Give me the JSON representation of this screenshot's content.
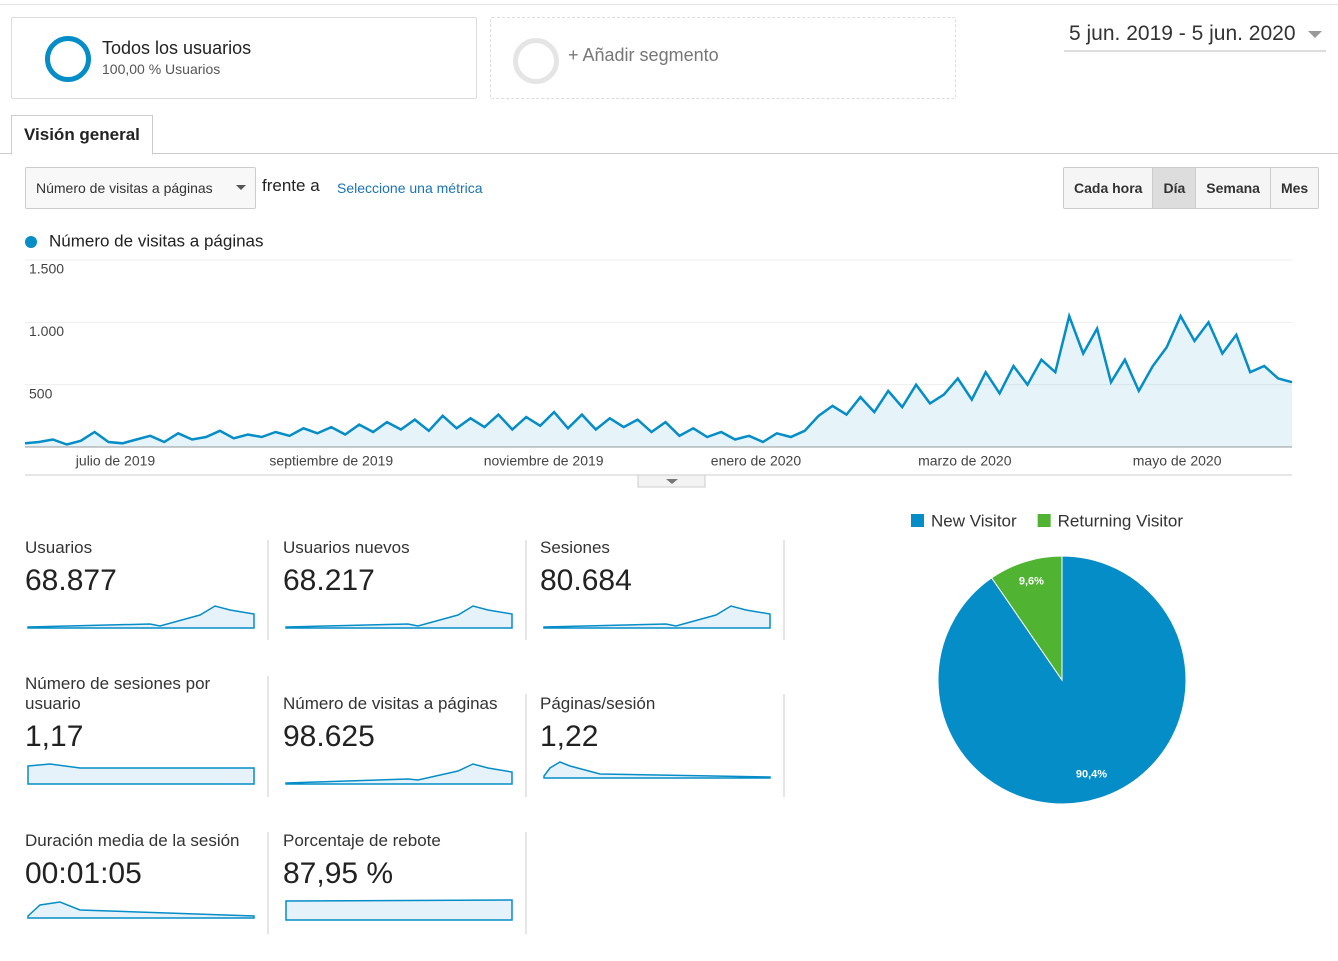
{
  "header": {
    "segment_title": "Todos los usuarios",
    "segment_subtitle": "100,00 % Usuarios",
    "add_segment": "+ Añadir segmento",
    "date_range": "5 jun. 2019 - 5 jun. 2020",
    "tab": "Visión general",
    "metric_dropdown": "Número de visitas a páginas",
    "versus": "frente a",
    "select_metric": "Seleccione una métrica",
    "buttons": [
      "Cada hora",
      "Día",
      "Semana",
      "Mes"
    ]
  },
  "chart_data": [
    {
      "type": "line",
      "series": [
        {
          "name": "Número de visitas a páginas",
          "color": "#058dc7",
          "values": [
            30,
            40,
            60,
            20,
            50,
            120,
            40,
            30,
            60,
            90,
            40,
            110,
            60,
            80,
            130,
            70,
            100,
            80,
            120,
            90,
            150,
            110,
            160,
            100,
            180,
            120,
            200,
            140,
            220,
            130,
            250,
            150,
            230,
            160,
            260,
            140,
            240,
            170,
            280,
            150,
            260,
            140,
            230,
            160,
            220,
            120,
            200,
            90,
            150,
            80,
            120,
            60,
            90,
            40,
            110,
            80,
            130,
            250,
            330,
            260,
            400,
            280,
            450,
            320,
            500,
            350,
            420,
            550,
            380,
            600,
            430,
            650,
            500,
            700,
            600,
            1050,
            750,
            950,
            520,
            700,
            450,
            650,
            800,
            1050,
            850,
            1000,
            750,
            900,
            600,
            650,
            550,
            520
          ]
        }
      ],
      "xlim": [
        0,
        91
      ],
      "xticks": [
        {
          "value": 6.5,
          "label": "julio de 2019"
        },
        {
          "value": 22,
          "label": "septiembre de 2019"
        },
        {
          "value": 37.25,
          "label": "noviembre de 2019"
        },
        {
          "value": 52.5,
          "label": "enero de 2020"
        },
        {
          "value": 67.5,
          "label": "marzo de 2020"
        },
        {
          "value": 82.75,
          "label": "mayo de 2020"
        }
      ],
      "ylim": [
        0,
        1500
      ],
      "yticks": [
        500,
        {
          "value": 1000,
          "label": "1.000"
        },
        {
          "value": 1500,
          "label": "1.500"
        }
      ],
      "grid": true
    },
    {
      "type": "pie",
      "categories": [
        "New Visitor",
        "Returning Visitor"
      ],
      "values": [
        90.4,
        9.6
      ],
      "value_labels": [
        "90,4%",
        "9,6%"
      ],
      "colors": [
        "#058dc7",
        "#50b432"
      ],
      "legend": "top"
    }
  ],
  "metrics": [
    {
      "label": "Usuarios",
      "value": "68.877"
    },
    {
      "label": "Usuarios nuevos",
      "value": "68.217"
    },
    {
      "label": "Sesiones",
      "value": "80.684"
    },
    {
      "label": "Número de sesiones por usuario",
      "value": "1,17"
    },
    {
      "label": "Número de visitas a páginas",
      "value": "98.625"
    },
    {
      "label": "Páginas/sesión",
      "value": "1,22"
    },
    {
      "label": "Duración media de la sesión",
      "value": "00:01:05"
    },
    {
      "label": "Porcentaje de rebote",
      "value": "87,95 %"
    }
  ]
}
